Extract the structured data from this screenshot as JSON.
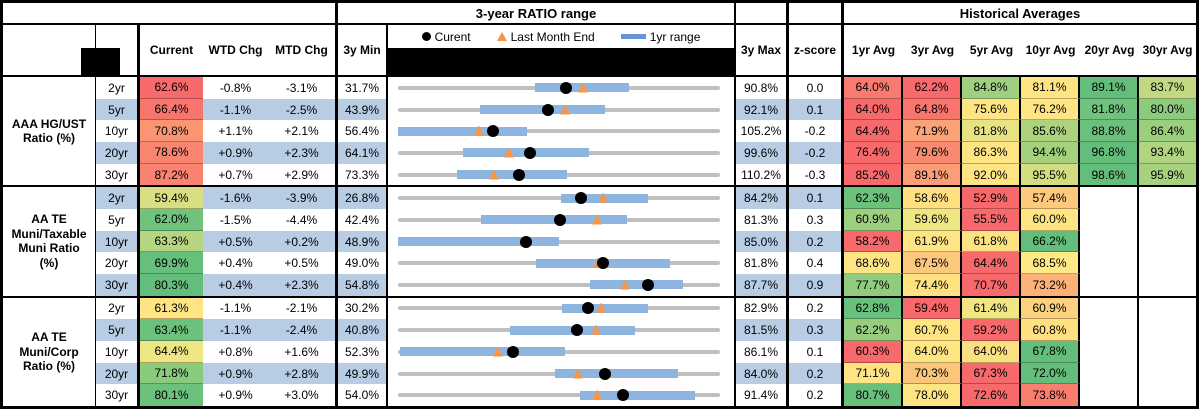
{
  "header": {
    "ratio_range_title": "3-year RATIO range",
    "historical_title": "Historical Averages",
    "columns": {
      "current": "Current",
      "wtd": "WTD Chg",
      "mtd": "MTD Chg",
      "min3y": "3y Min",
      "max3y": "3y Max",
      "zscore": "z-score",
      "avgs": [
        "1yr Avg",
        "3yr Avg",
        "5yr Avg",
        "10yr Avg",
        "20yr Avg",
        "30yr Avg"
      ]
    },
    "legend": {
      "current": "Curent",
      "last_month": "Last Month End",
      "range": "1yr range"
    }
  },
  "colors": {
    "band_blue": "#B8CCE4",
    "range_bar_blue": "#8EB4E0",
    "track_gray": "#BFBFBF",
    "marker_black": "#000000",
    "triangle_orange": "#F79646",
    "legend_bar_blue": "#6795D1",
    "heat_red": "#F8696B",
    "heat_yellow": "#FFE483",
    "heat_green": "#63BE7B"
  },
  "groups": [
    {
      "label": "AAA HG/UST\nRatio (%)",
      "rows": [
        {
          "tenor": "2yr",
          "current": {
            "text": "62.6%",
            "bg": "#F8696B"
          },
          "wtd": "-0.8%",
          "mtd": "-3.1%",
          "min3y": "31.7%",
          "max3y": "90.8%",
          "zscore": "0.0",
          "range": {
            "min": 31.7,
            "max": 90.8,
            "current": 62.6,
            "last_month": 65.7,
            "yr1_low": 56.8,
            "yr1_high": 74.1
          },
          "avgs": [
            {
              "text": "64.0%",
              "bg": "#F97B6F"
            },
            {
              "text": "62.2%",
              "bg": "#F8696B"
            },
            {
              "text": "84.8%",
              "bg": "#A0D07F"
            },
            {
              "text": "81.1%",
              "bg": "#FFE483"
            },
            {
              "text": "89.1%",
              "bg": "#63BE7B"
            },
            {
              "text": "83.7%",
              "bg": "#C2D981"
            }
          ]
        },
        {
          "tenor": "5yr",
          "current": {
            "text": "66.4%",
            "bg": "#F8756E"
          },
          "wtd": "-1.1%",
          "mtd": "-2.5%",
          "min3y": "43.9%",
          "max3y": "92.1%",
          "zscore": "0.1",
          "range": {
            "min": 43.9,
            "max": 92.1,
            "current": 66.4,
            "last_month": 68.9,
            "yr1_low": 56.2,
            "yr1_high": 74.9
          },
          "avgs": [
            {
              "text": "64.0%",
              "bg": "#F8696B"
            },
            {
              "text": "64.8%",
              "bg": "#F8756E"
            },
            {
              "text": "75.6%",
              "bg": "#FFE483"
            },
            {
              "text": "76.2%",
              "bg": "#FEE482"
            },
            {
              "text": "81.8%",
              "bg": "#70C37C"
            },
            {
              "text": "80.0%",
              "bg": "#8CCB7D"
            }
          ]
        },
        {
          "tenor": "10yr",
          "current": {
            "text": "70.8%",
            "bg": "#FA9573"
          },
          "wtd": "+1.1%",
          "mtd": "+2.1%",
          "min3y": "56.4%",
          "max3y": "105.2%",
          "zscore": "-0.2",
          "range": {
            "min": 56.4,
            "max": 105.2,
            "current": 70.8,
            "last_month": 68.7,
            "yr1_low": 56.4,
            "yr1_high": 75.9
          },
          "avgs": [
            {
              "text": "64.4%",
              "bg": "#F8696B"
            },
            {
              "text": "71.9%",
              "bg": "#FBA376"
            },
            {
              "text": "81.8%",
              "bg": "#E7E382"
            },
            {
              "text": "85.6%",
              "bg": "#AED37F"
            },
            {
              "text": "88.8%",
              "bg": "#6BC17B"
            },
            {
              "text": "86.4%",
              "bg": "#9ACF7E"
            }
          ]
        },
        {
          "tenor": "20yr",
          "current": {
            "text": "78.6%",
            "bg": "#F98470"
          },
          "wtd": "+0.9%",
          "mtd": "+2.3%",
          "min3y": "64.1%",
          "max3y": "99.6%",
          "zscore": "-0.2",
          "range": {
            "min": 64.1,
            "max": 99.6,
            "current": 78.6,
            "last_month": 76.3,
            "yr1_low": 71.3,
            "yr1_high": 85.2
          },
          "avgs": [
            {
              "text": "76.4%",
              "bg": "#F8696B"
            },
            {
              "text": "79.6%",
              "bg": "#F98A71"
            },
            {
              "text": "86.3%",
              "bg": "#FFE483"
            },
            {
              "text": "94.4%",
              "bg": "#A5D17F"
            },
            {
              "text": "96.8%",
              "bg": "#63BE7B"
            },
            {
              "text": "93.4%",
              "bg": "#B0D480"
            }
          ]
        },
        {
          "tenor": "30yr",
          "current": {
            "text": "87.2%",
            "bg": "#F98270"
          },
          "wtd": "+0.7%",
          "mtd": "+2.9%",
          "min3y": "73.3%",
          "max3y": "110.2%",
          "zscore": "-0.3",
          "range": {
            "min": 73.3,
            "max": 110.2,
            "current": 87.2,
            "last_month": 84.3,
            "yr1_low": 80.1,
            "yr1_high": 92.7
          },
          "avgs": [
            {
              "text": "85.2%",
              "bg": "#F8696B"
            },
            {
              "text": "89.1%",
              "bg": "#FB9D75"
            },
            {
              "text": "92.0%",
              "bg": "#FFE483"
            },
            {
              "text": "95.5%",
              "bg": "#D2DC81"
            },
            {
              "text": "98.6%",
              "bg": "#63BE7B"
            },
            {
              "text": "95.9%",
              "bg": "#A7D17F"
            }
          ]
        }
      ]
    },
    {
      "label": "AA TE\nMuni/Taxable\nMuni Ratio\n(%)",
      "rows": [
        {
          "tenor": "2yr",
          "current": {
            "text": "59.4%",
            "bg": "#D8DE81"
          },
          "wtd": "-1.6%",
          "mtd": "-3.9%",
          "min3y": "26.8%",
          "max3y": "84.2%",
          "zscore": "0.1",
          "range": {
            "min": 26.8,
            "max": 84.2,
            "current": 59.4,
            "last_month": 63.3,
            "yr1_low": 55.8,
            "yr1_high": 71.3
          },
          "avgs": [
            {
              "text": "62.3%",
              "bg": "#6CC17B"
            },
            {
              "text": "58.6%",
              "bg": "#FFDF81"
            },
            {
              "text": "52.9%",
              "bg": "#F8696B"
            },
            {
              "text": "57.4%",
              "bg": "#FCC97D"
            },
            null,
            null
          ]
        },
        {
          "tenor": "5yr",
          "current": {
            "text": "62.0%",
            "bg": "#70C37C"
          },
          "wtd": "-1.5%",
          "mtd": "-4.4%",
          "min3y": "42.4%",
          "max3y": "81.3%",
          "zscore": "0.3",
          "range": {
            "min": 42.4,
            "max": 81.3,
            "current": 62.0,
            "last_month": 66.4,
            "yr1_low": 52.4,
            "yr1_high": 70.1
          },
          "avgs": [
            {
              "text": "60.9%",
              "bg": "#9CCF7E"
            },
            {
              "text": "59.6%",
              "bg": "#EEE583"
            },
            {
              "text": "55.5%",
              "bg": "#F8696B"
            },
            {
              "text": "60.0%",
              "bg": "#FFE483"
            },
            null,
            null
          ]
        },
        {
          "tenor": "10yr",
          "current": {
            "text": "63.3%",
            "bg": "#B5D580"
          },
          "wtd": "+0.5%",
          "mtd": "+0.2%",
          "min3y": "48.9%",
          "max3y": "85.0%",
          "zscore": "0.2",
          "range": {
            "min": 48.9,
            "max": 85.0,
            "current": 63.3,
            "last_month": 63.1,
            "yr1_low": 48.9,
            "yr1_high": 67.0
          },
          "avgs": [
            {
              "text": "58.2%",
              "bg": "#F8696B"
            },
            {
              "text": "61.9%",
              "bg": "#FFE483"
            },
            {
              "text": "61.8%",
              "bg": "#FDE282"
            },
            {
              "text": "66.2%",
              "bg": "#63BE7B"
            },
            null,
            null
          ]
        },
        {
          "tenor": "20yr",
          "current": {
            "text": "69.9%",
            "bg": "#66BF7B"
          },
          "wtd": "+0.4%",
          "mtd": "+0.5%",
          "min3y": "49.0%",
          "max3y": "81.8%",
          "zscore": "0.4",
          "range": {
            "min": 49.0,
            "max": 81.8,
            "current": 69.9,
            "last_month": 69.4,
            "yr1_low": 63.1,
            "yr1_high": 76.7
          },
          "avgs": [
            {
              "text": "68.6%",
              "bg": "#FFE483"
            },
            {
              "text": "67.5%",
              "bg": "#FCC87D"
            },
            {
              "text": "64.4%",
              "bg": "#F8696B"
            },
            {
              "text": "68.5%",
              "bg": "#FFE886"
            },
            null,
            null
          ]
        },
        {
          "tenor": "30yr",
          "current": {
            "text": "80.3%",
            "bg": "#63BE7B"
          },
          "wtd": "+0.4%",
          "mtd": "+2.3%",
          "min3y": "54.8%",
          "max3y": "87.7%",
          "zscore": "0.9",
          "range": {
            "min": 54.8,
            "max": 87.7,
            "current": 80.3,
            "last_month": 78.0,
            "yr1_low": 74.4,
            "yr1_high": 83.9
          },
          "avgs": [
            {
              "text": "77.7%",
              "bg": "#90CC7E"
            },
            {
              "text": "74.4%",
              "bg": "#FFE181"
            },
            {
              "text": "70.7%",
              "bg": "#F8696B"
            },
            {
              "text": "73.2%",
              "bg": "#FBB177"
            },
            null,
            null
          ]
        }
      ]
    },
    {
      "label": "AA TE\nMuni/Corp\nRatio (%)",
      "rows": [
        {
          "tenor": "2yr",
          "current": {
            "text": "61.3%",
            "bg": "#FFE483"
          },
          "wtd": "-1.1%",
          "mtd": "-2.1%",
          "min3y": "30.2%",
          "max3y": "82.9%",
          "zscore": "0.2",
          "range": {
            "min": 30.2,
            "max": 82.9,
            "current": 61.3,
            "last_month": 63.4,
            "yr1_low": 57.0,
            "yr1_high": 71.2
          },
          "avgs": [
            {
              "text": "62.8%",
              "bg": "#67C07B"
            },
            {
              "text": "59.4%",
              "bg": "#F8696B"
            },
            {
              "text": "61.4%",
              "bg": "#F2E683"
            },
            {
              "text": "60.9%",
              "bg": "#FED17F"
            },
            null,
            null
          ]
        },
        {
          "tenor": "5yr",
          "current": {
            "text": "63.4%",
            "bg": "#6CC27C"
          },
          "wtd": "-1.1%",
          "mtd": "-2.4%",
          "min3y": "40.8%",
          "max3y": "81.5%",
          "zscore": "0.3",
          "range": {
            "min": 40.8,
            "max": 81.5,
            "current": 63.4,
            "last_month": 65.8,
            "yr1_low": 55.0,
            "yr1_high": 70.8
          },
          "avgs": [
            {
              "text": "62.2%",
              "bg": "#96CE7E"
            },
            {
              "text": "60.7%",
              "bg": "#FFE483"
            },
            {
              "text": "59.2%",
              "bg": "#F8696B"
            },
            {
              "text": "60.8%",
              "bg": "#FFE081"
            },
            null,
            null
          ]
        },
        {
          "tenor": "10yr",
          "current": {
            "text": "64.4%",
            "bg": "#EEE583"
          },
          "wtd": "+0.8%",
          "mtd": "+1.6%",
          "min3y": "52.3%",
          "max3y": "86.1%",
          "zscore": "0.1",
          "range": {
            "min": 52.3,
            "max": 86.1,
            "current": 64.4,
            "last_month": 62.8,
            "yr1_low": 52.5,
            "yr1_high": 69.8
          },
          "avgs": [
            {
              "text": "60.3%",
              "bg": "#F8696B"
            },
            {
              "text": "64.0%",
              "bg": "#FFE483"
            },
            {
              "text": "64.0%",
              "bg": "#FBE082"
            },
            {
              "text": "67.8%",
              "bg": "#63BE7B"
            },
            null,
            null
          ]
        },
        {
          "tenor": "20yr",
          "current": {
            "text": "71.8%",
            "bg": "#8ACA7D"
          },
          "wtd": "+0.9%",
          "mtd": "+2.8%",
          "min3y": "49.9%",
          "max3y": "84.0%",
          "zscore": "0.2",
          "range": {
            "min": 49.9,
            "max": 84.0,
            "current": 71.8,
            "last_month": 69.0,
            "yr1_low": 66.5,
            "yr1_high": 79.6
          },
          "avgs": [
            {
              "text": "71.1%",
              "bg": "#FFE483"
            },
            {
              "text": "70.3%",
              "bg": "#FCC57C"
            },
            {
              "text": "67.3%",
              "bg": "#F8696B"
            },
            {
              "text": "72.0%",
              "bg": "#63BE7B"
            },
            null,
            null
          ]
        },
        {
          "tenor": "30yr",
          "current": {
            "text": "80.1%",
            "bg": "#6CC17C"
          },
          "wtd": "+0.9%",
          "mtd": "+3.0%",
          "min3y": "54.0%",
          "max3y": "91.4%",
          "zscore": "0.2",
          "range": {
            "min": 54.0,
            "max": 91.4,
            "current": 80.1,
            "last_month": 77.1,
            "yr1_low": 75.1,
            "yr1_high": 88.5
          },
          "avgs": [
            {
              "text": "80.7%",
              "bg": "#68C07B"
            },
            {
              "text": "78.0%",
              "bg": "#FFE483"
            },
            {
              "text": "72.6%",
              "bg": "#F8696B"
            },
            {
              "text": "73.8%",
              "bg": "#F97E70"
            },
            null,
            null
          ]
        }
      ]
    }
  ]
}
